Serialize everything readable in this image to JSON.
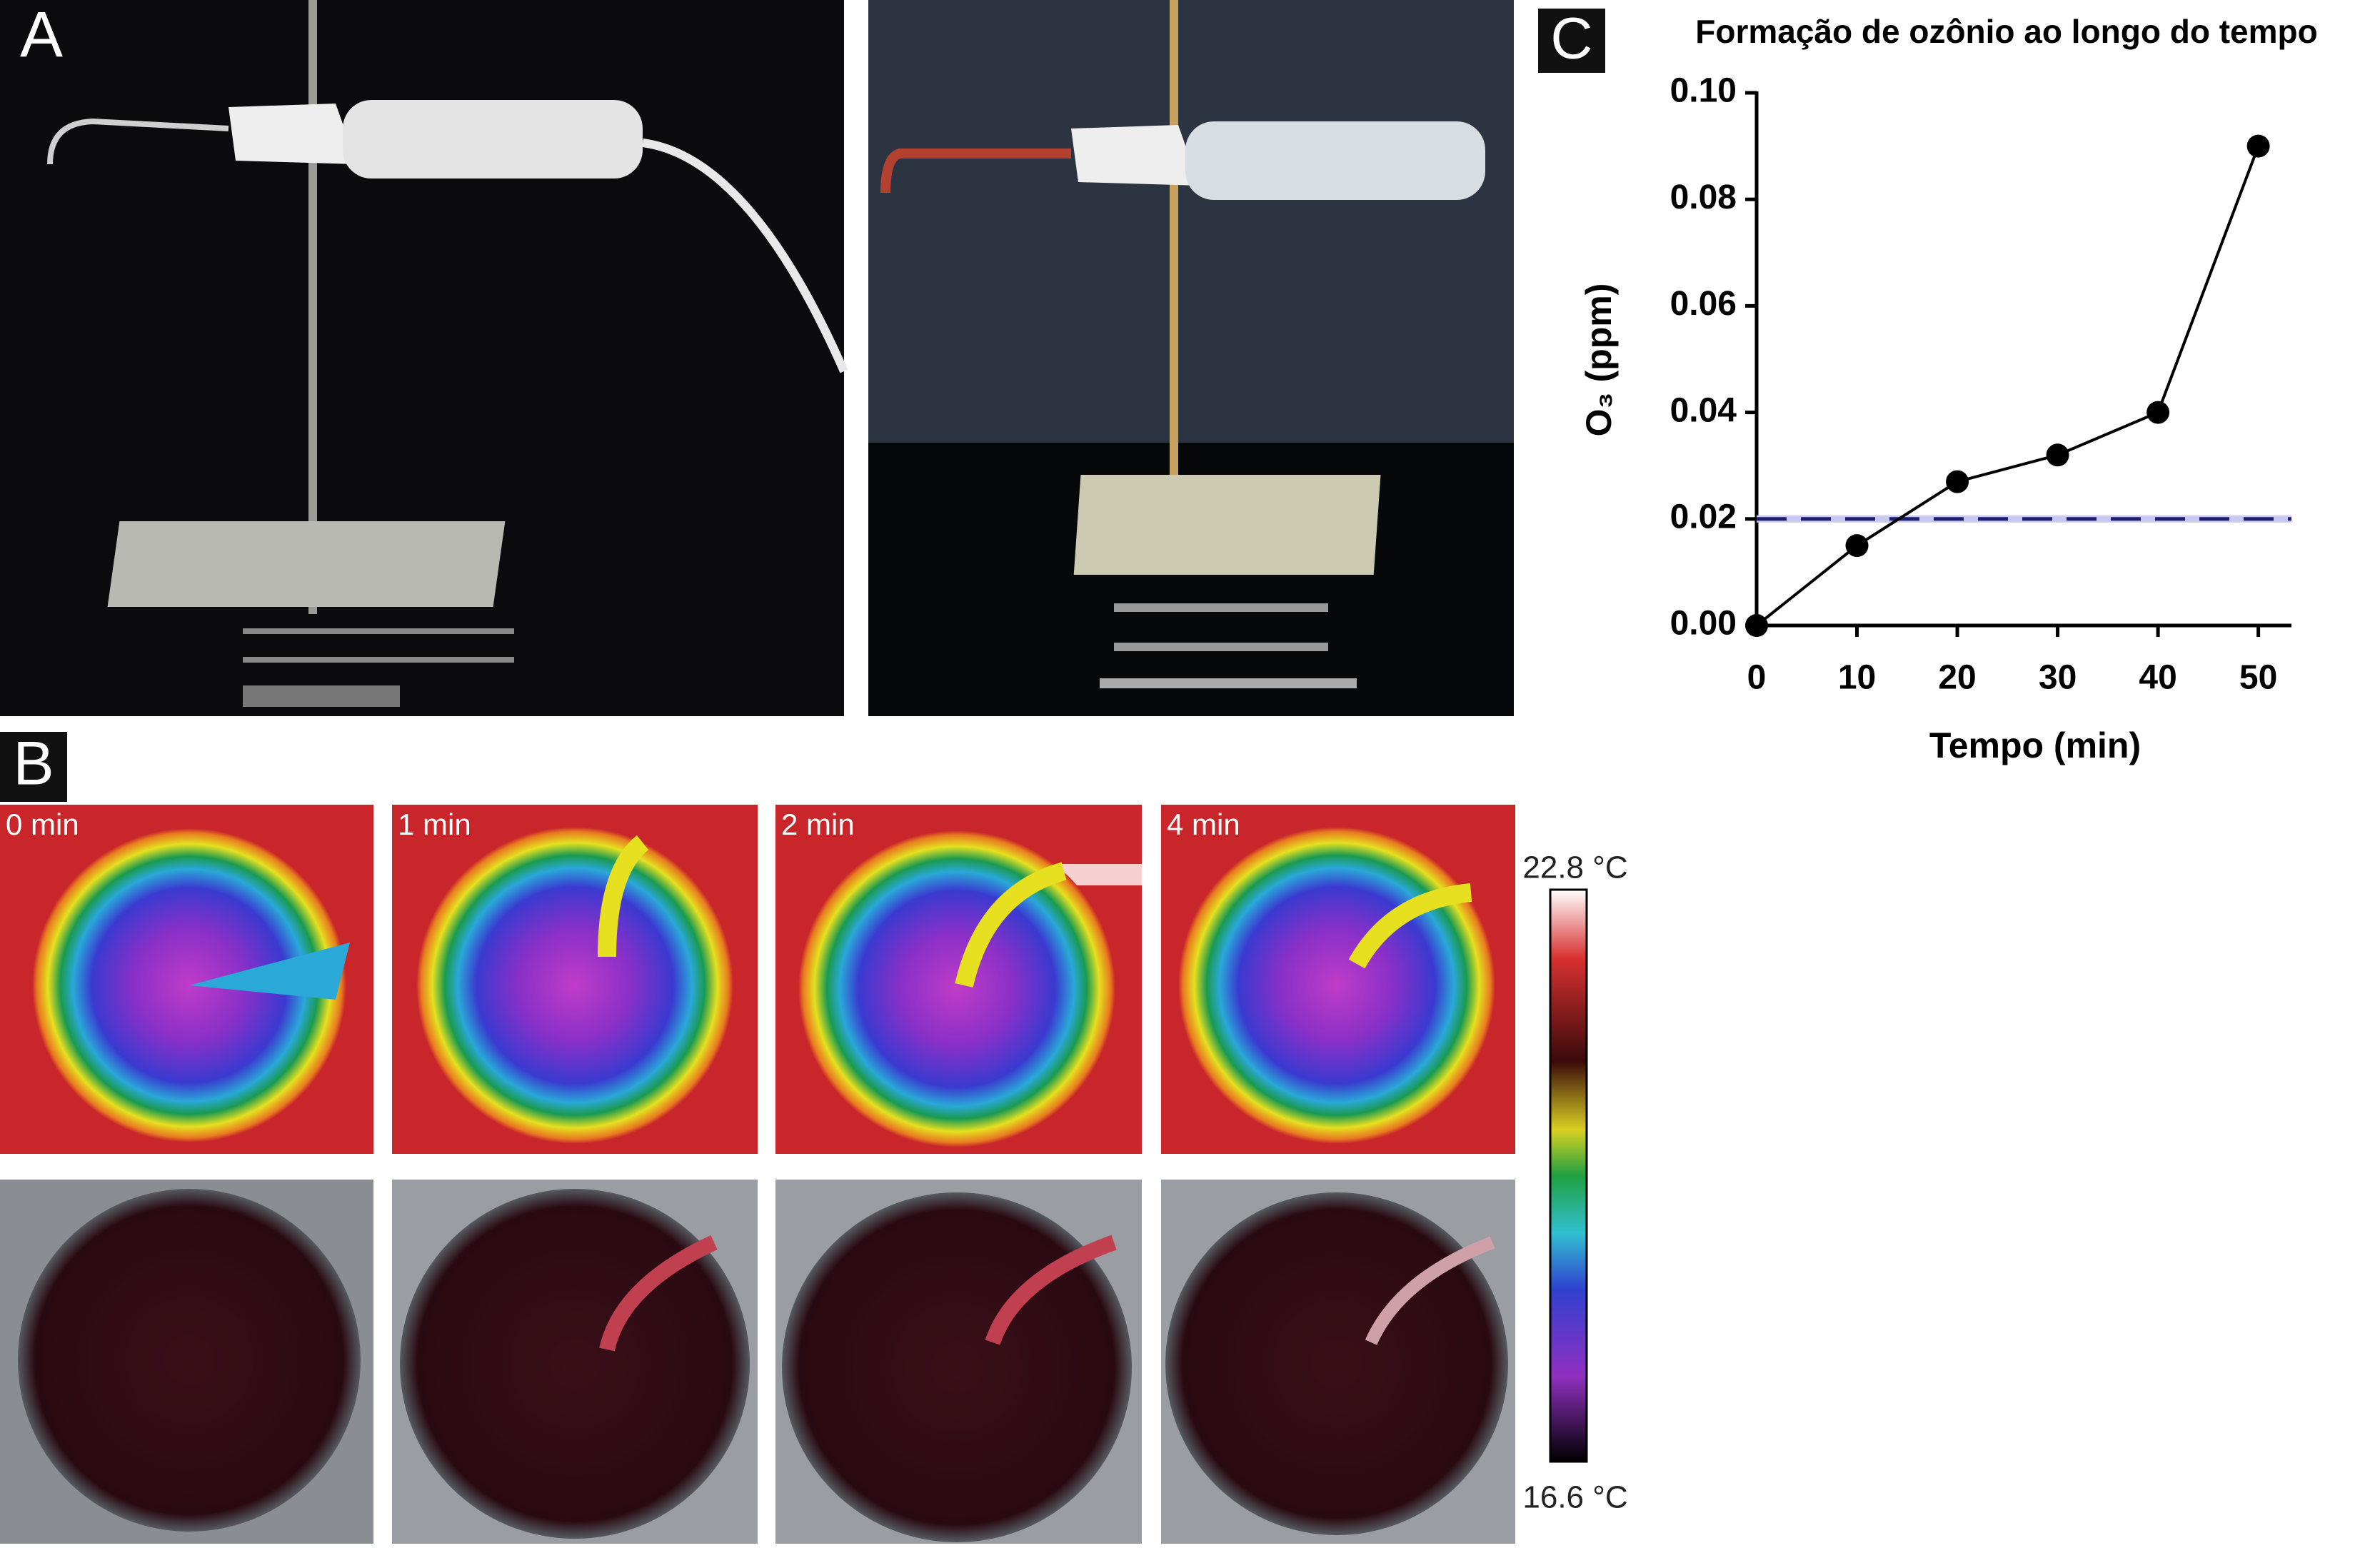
{
  "panel_labels": [
    "A",
    "B",
    "C"
  ],
  "thermal": {
    "frames": [
      "0 min",
      "1 min",
      "2 min",
      "4 min"
    ],
    "scale_max": "22.8 °C",
    "scale_min": "16.6 °C"
  },
  "chart_data": {
    "type": "line",
    "title": "Formação de ozônio ao longo do tempo",
    "x_label": "Tempo (min)",
    "y_label": "O₃ (ppm)",
    "x": [
      0,
      10,
      20,
      30,
      40,
      50
    ],
    "values": [
      0,
      0.015,
      0.027,
      0.032,
      0.04,
      0.09
    ],
    "color": "#000000",
    "reference_line": {
      "value": 0.02,
      "color": "#1f1f70"
    },
    "xlim": [
      0,
      53.3
    ],
    "xticks": [
      0,
      10,
      20,
      30,
      40,
      50
    ],
    "ylim": [
      0,
      0.1
    ],
    "yticks": [
      {
        "value": 0,
        "label": "0.00"
      },
      0.02,
      0.04,
      0.06,
      0.08,
      {
        "value": 0.1,
        "label": "0.10"
      }
    ]
  }
}
